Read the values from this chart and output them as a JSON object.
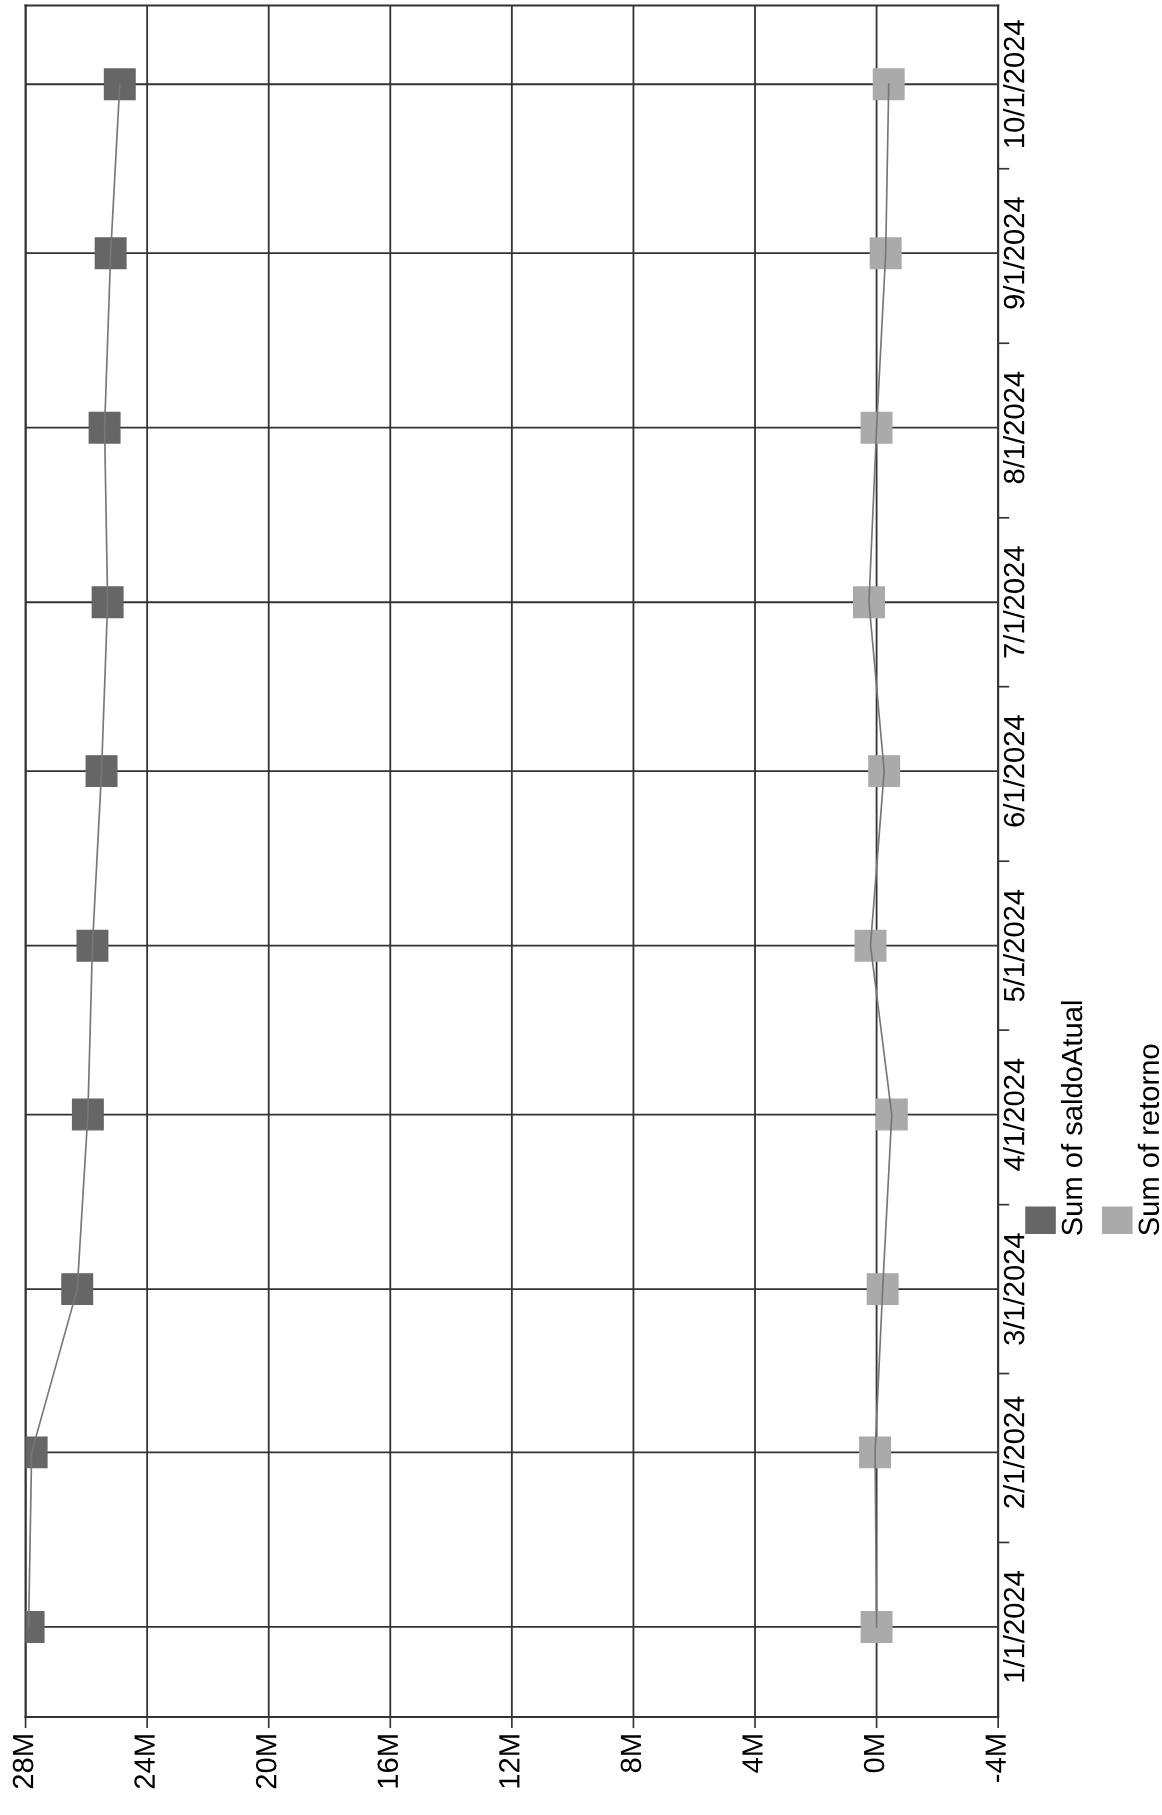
{
  "chart_data": {
    "type": "line",
    "orientation": "horizontal",
    "x": [
      "2024-01-01",
      "2024-02-01",
      "2024-03-01",
      "2024-04-01",
      "2024-05-01",
      "2024-06-01",
      "2024-07-01",
      "2024-08-01",
      "2024-09-01",
      "2024-10-01"
    ],
    "series": [
      {
        "name": "Sum of saldoAtual",
        "color": "#666666",
        "values": [
          27900000,
          27800000,
          26300000,
          25950000,
          25800000,
          25500000,
          25300000,
          25400000,
          25200000,
          24900000
        ]
      },
      {
        "name": "Sum of retorno",
        "color": "#aaaaaa",
        "values": [
          0,
          50000,
          -200000,
          -500000,
          200000,
          -250000,
          250000,
          0,
          -300000,
          -400000
        ]
      }
    ],
    "xlim": [
      28000000,
      -4000000
    ],
    "xticks": [
      {
        "value": 28000000,
        "label": "28M"
      },
      {
        "value": 24000000,
        "label": "24M"
      },
      {
        "value": 20000000,
        "label": "20M"
      },
      {
        "value": 16000000,
        "label": "16M"
      },
      {
        "value": 12000000,
        "label": "12M"
      },
      {
        "value": 8000000,
        "label": "8M"
      },
      {
        "value": 4000000,
        "label": "4M"
      },
      {
        "value": 0,
        "label": "0M"
      },
      {
        "value": -4000000,
        "label": "-4M"
      }
    ],
    "ylim": [
      "2023-12-16",
      "2024-10-15"
    ],
    "yticks": [
      {
        "value": "2024-01-01",
        "label": "1/1/2024"
      },
      {
        "value": "2024-01-16",
        "label": null
      },
      {
        "value": "2024-02-01",
        "label": "2/1/2024"
      },
      {
        "value": "2024-02-15",
        "label": null
      },
      {
        "value": "2024-03-01",
        "label": "3/1/2024"
      },
      {
        "value": "2024-03-16",
        "label": null
      },
      {
        "value": "2024-04-01",
        "label": "4/1/2024"
      },
      {
        "value": "2024-04-16",
        "label": null
      },
      {
        "value": "2024-05-01",
        "label": "5/1/2024"
      },
      {
        "value": "2024-05-16",
        "label": null
      },
      {
        "value": "2024-06-01",
        "label": "6/1/2024"
      },
      {
        "value": "2024-06-16",
        "label": null
      },
      {
        "value": "2024-07-01",
        "label": "7/1/2024"
      },
      {
        "value": "2024-07-16",
        "label": null
      },
      {
        "value": "2024-08-01",
        "label": "8/1/2024"
      },
      {
        "value": "2024-08-16",
        "label": null
      },
      {
        "value": "2024-09-01",
        "label": "9/1/2024"
      },
      {
        "value": "2024-09-16",
        "label": null
      },
      {
        "value": "2024-10-01",
        "label": "10/1/2024"
      }
    ],
    "grid": true,
    "legend": "right",
    "marker": "square",
    "line_style": "solid"
  }
}
